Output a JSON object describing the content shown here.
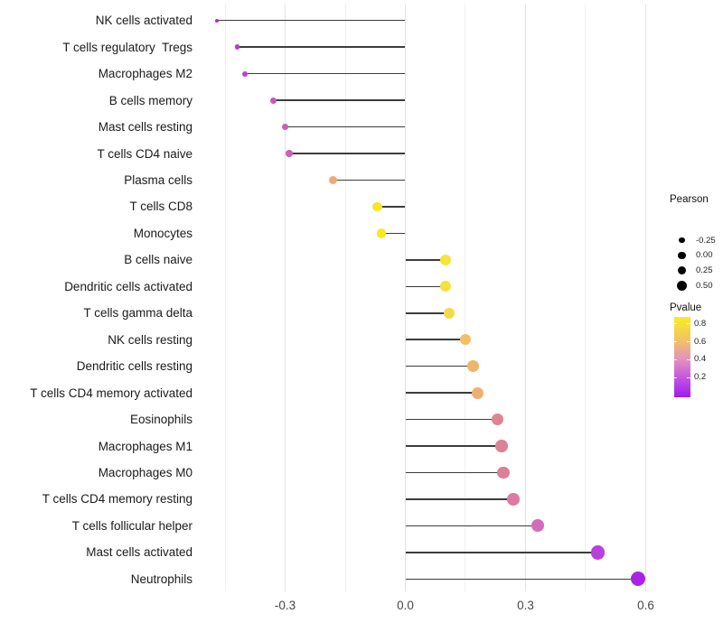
{
  "chart_data": {
    "type": "lollipop",
    "title": "",
    "xlabel": "",
    "ylabel": "",
    "xlim": [
      -0.52,
      0.63
    ],
    "grid": "vertical-only",
    "x_ticks": [
      {
        "label": "-0.3",
        "v": -0.3
      },
      {
        "label": "0.0",
        "v": 0.0
      },
      {
        "label": "0.3",
        "v": 0.3
      },
      {
        "label": "0.6",
        "v": 0.6
      }
    ],
    "x_gridlines": [
      {
        "v": -0.45,
        "minor": true
      },
      {
        "v": -0.3,
        "minor": false
      },
      {
        "v": -0.15,
        "minor": true
      },
      {
        "v": 0.0,
        "minor": false
      },
      {
        "v": 0.15,
        "minor": true
      },
      {
        "v": 0.3,
        "minor": false
      },
      {
        "v": 0.45,
        "minor": true
      },
      {
        "v": 0.6,
        "minor": false
      }
    ],
    "rows": [
      {
        "label": "NK cells activated",
        "pearson": -0.47,
        "pvalue_est": 0.13,
        "color": "#A92FD2"
      },
      {
        "label": "T cells regulatory  Tregs",
        "pearson": -0.42,
        "pvalue_est": 0.2,
        "color": "#B23FD0"
      },
      {
        "label": "Macrophages M2",
        "pearson": -0.4,
        "pvalue_est": 0.22,
        "color": "#B747CE"
      },
      {
        "label": "B cells memory",
        "pearson": -0.33,
        "pvalue_est": 0.3,
        "color": "#C558BD"
      },
      {
        "label": "Mast cells resting",
        "pearson": -0.3,
        "pvalue_est": 0.34,
        "color": "#CB60B3"
      },
      {
        "label": "T cells CD4 naive",
        "pearson": -0.29,
        "pvalue_est": 0.35,
        "color": "#CB63AE"
      },
      {
        "label": "Plasma cells",
        "pearson": -0.18,
        "pvalue_est": 0.62,
        "color": "#EFAA70"
      },
      {
        "label": "T cells CD8",
        "pearson": -0.07,
        "pvalue_est": 0.82,
        "color": "#F7E627"
      },
      {
        "label": "Monocytes",
        "pearson": -0.06,
        "pvalue_est": 0.85,
        "color": "#F8E91F"
      },
      {
        "label": "B cells naive",
        "pearson": 0.1,
        "pvalue_est": 0.78,
        "color": "#F6E33B"
      },
      {
        "label": "Dendritic cells activated",
        "pearson": 0.1,
        "pvalue_est": 0.75,
        "color": "#F5E03E"
      },
      {
        "label": "T cells gamma delta",
        "pearson": 0.11,
        "pvalue_est": 0.7,
        "color": "#F4DA48"
      },
      {
        "label": "NK cells resting",
        "pearson": 0.15,
        "pvalue_est": 0.6,
        "color": "#F2BF62"
      },
      {
        "label": "Dendritic cells resting",
        "pearson": 0.17,
        "pvalue_est": 0.57,
        "color": "#F0B56B"
      },
      {
        "label": "T cells CD4 memory activated",
        "pearson": 0.18,
        "pvalue_est": 0.55,
        "color": "#EFB06F"
      },
      {
        "label": "Eosinophils",
        "pearson": 0.23,
        "pvalue_est": 0.44,
        "color": "#DE8495"
      },
      {
        "label": "Macrophages M1",
        "pearson": 0.24,
        "pvalue_est": 0.43,
        "color": "#DD8197"
      },
      {
        "label": "Macrophages M0",
        "pearson": 0.245,
        "pvalue_est": 0.42,
        "color": "#DC7F99"
      },
      {
        "label": "T cells CD4 memory resting",
        "pearson": 0.27,
        "pvalue_est": 0.39,
        "color": "#DB7AA3"
      },
      {
        "label": "T cells follicular helper",
        "pearson": 0.33,
        "pvalue_est": 0.3,
        "color": "#D56BB9"
      },
      {
        "label": "Mast cells activated",
        "pearson": 0.48,
        "pvalue_est": 0.15,
        "color": "#BB3FDC"
      },
      {
        "label": "Neutrophils",
        "pearson": 0.58,
        "pvalue_est": 0.1,
        "color": "#A825E8"
      }
    ],
    "legend_size": {
      "title": "Pearson",
      "items": [
        {
          "label": "-0.25",
          "radius": 3.3
        },
        {
          "label": "0.00",
          "radius": 4.2
        },
        {
          "label": "0.25",
          "radius": 4.8
        },
        {
          "label": "0.50",
          "radius": 5.5
        }
      ]
    },
    "legend_color": {
      "title": "Pvalue",
      "ticks": [
        {
          "label": "0.8",
          "pos": 0.084
        },
        {
          "label": "0.6",
          "pos": 0.306
        },
        {
          "label": "0.4",
          "pos": 0.527
        },
        {
          "label": "0.2",
          "pos": 0.748
        }
      ],
      "gradient": [
        {
          "pos": 0.0,
          "color": "#F9EA2B"
        },
        {
          "pos": 0.084,
          "color": "#F7E134"
        },
        {
          "pos": 0.31,
          "color": "#F2BE6B"
        },
        {
          "pos": 0.53,
          "color": "#E291BF"
        },
        {
          "pos": 0.75,
          "color": "#C558DF"
        },
        {
          "pos": 1.0,
          "color": "#A01BF0"
        }
      ]
    },
    "colors": {
      "stem": "#3c3c3c",
      "grid_major": "#e2e2e2",
      "grid_minor": "#f0f0f0",
      "axis_text": "#474747",
      "label_text": "#1a1a1a"
    }
  }
}
